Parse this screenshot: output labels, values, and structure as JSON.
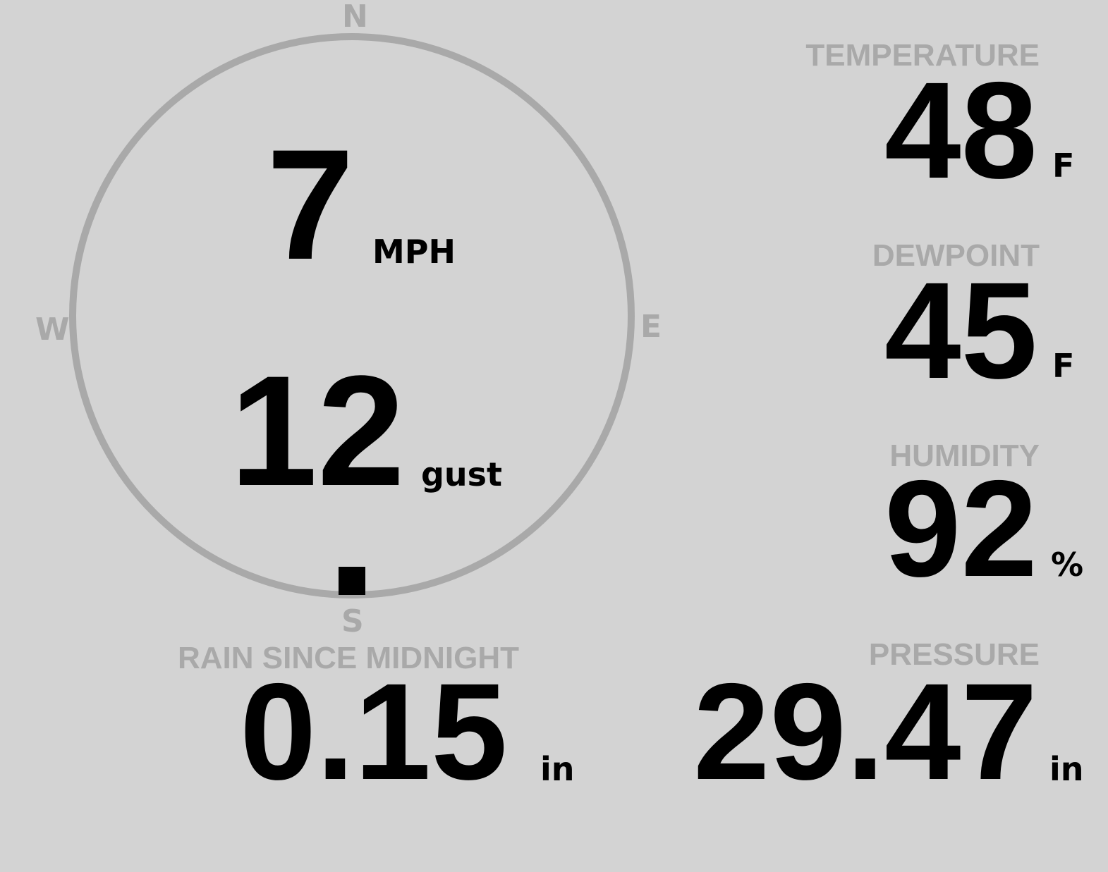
{
  "colors": {
    "background": "#d3d3d3",
    "label": "#a9a9a9",
    "value": "#000000"
  },
  "wind": {
    "compass": {
      "n": "N",
      "e": "E",
      "s": "S",
      "w": "W"
    },
    "direction_icon": "square-marker",
    "direction_degrees": 180,
    "speed": "7",
    "speed_unit": "MPH",
    "gust": "12",
    "gust_unit": "gust"
  },
  "temperature": {
    "label": "TEMPERATURE",
    "value": "48",
    "unit": "F"
  },
  "dewpoint": {
    "label": "DEWPOINT",
    "value": "45",
    "unit": "F"
  },
  "humidity": {
    "label": "HUMIDITY",
    "value": "92",
    "unit": "%"
  },
  "rain": {
    "label": "RAIN SINCE MIDNIGHT",
    "value": "0.15",
    "unit": "in"
  },
  "pressure": {
    "label": "PRESSURE",
    "value": "29.47",
    "unit": "in"
  }
}
